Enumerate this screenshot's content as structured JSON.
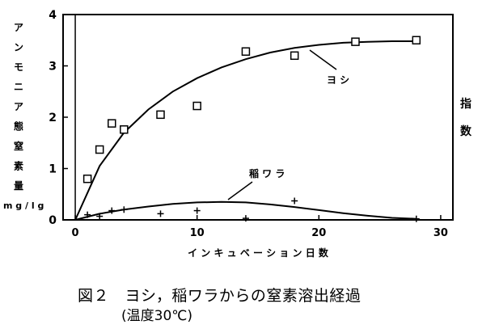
{
  "chart_data": {
    "type": "scatter",
    "ylabel": "アンモニア態窒素量",
    "ylabel_unit": "mg/lg",
    "xlabel": "インキュベーション日数",
    "right_label": "指数",
    "xlim": [
      -1,
      31
    ],
    "ylim": [
      0,
      4
    ],
    "xticks": [
      0,
      10,
      20,
      30
    ],
    "yticks": [
      0,
      1,
      2,
      3,
      4
    ],
    "grid": false,
    "series": [
      {
        "name": "ヨシ",
        "marker": "square",
        "x": [
          1,
          2,
          3,
          4,
          7,
          10,
          14,
          18,
          23,
          28
        ],
        "y": [
          0.8,
          1.37,
          1.88,
          1.76,
          2.05,
          2.22,
          3.28,
          3.2,
          3.47,
          3.5
        ],
        "curve_x": [
          0,
          2,
          4,
          6,
          8,
          10,
          12,
          14,
          16,
          18,
          20,
          22,
          24,
          26,
          28
        ],
        "curve_y": [
          0,
          1.05,
          1.7,
          2.15,
          2.5,
          2.76,
          2.97,
          3.13,
          3.26,
          3.35,
          3.41,
          3.45,
          3.47,
          3.48,
          3.48
        ]
      },
      {
        "name": "稲ワラ",
        "marker": "plus",
        "x": [
          1,
          2,
          3,
          4,
          7,
          10,
          14,
          18,
          28
        ],
        "y": [
          0.1,
          0.07,
          0.18,
          0.2,
          0.12,
          0.18,
          0.03,
          0.37,
          0.02
        ],
        "curve_x": [
          0,
          2,
          4,
          6,
          8,
          10,
          12,
          14,
          16,
          18,
          20,
          22,
          24,
          26,
          28
        ],
        "curve_y": [
          0,
          0.12,
          0.2,
          0.26,
          0.31,
          0.34,
          0.35,
          0.34,
          0.3,
          0.25,
          0.19,
          0.13,
          0.08,
          0.04,
          0.02
        ]
      }
    ]
  },
  "caption": {
    "line1": "図２　ヨシ，稲ワラからの窒素溶出経過",
    "line2": "(温度30℃)"
  }
}
